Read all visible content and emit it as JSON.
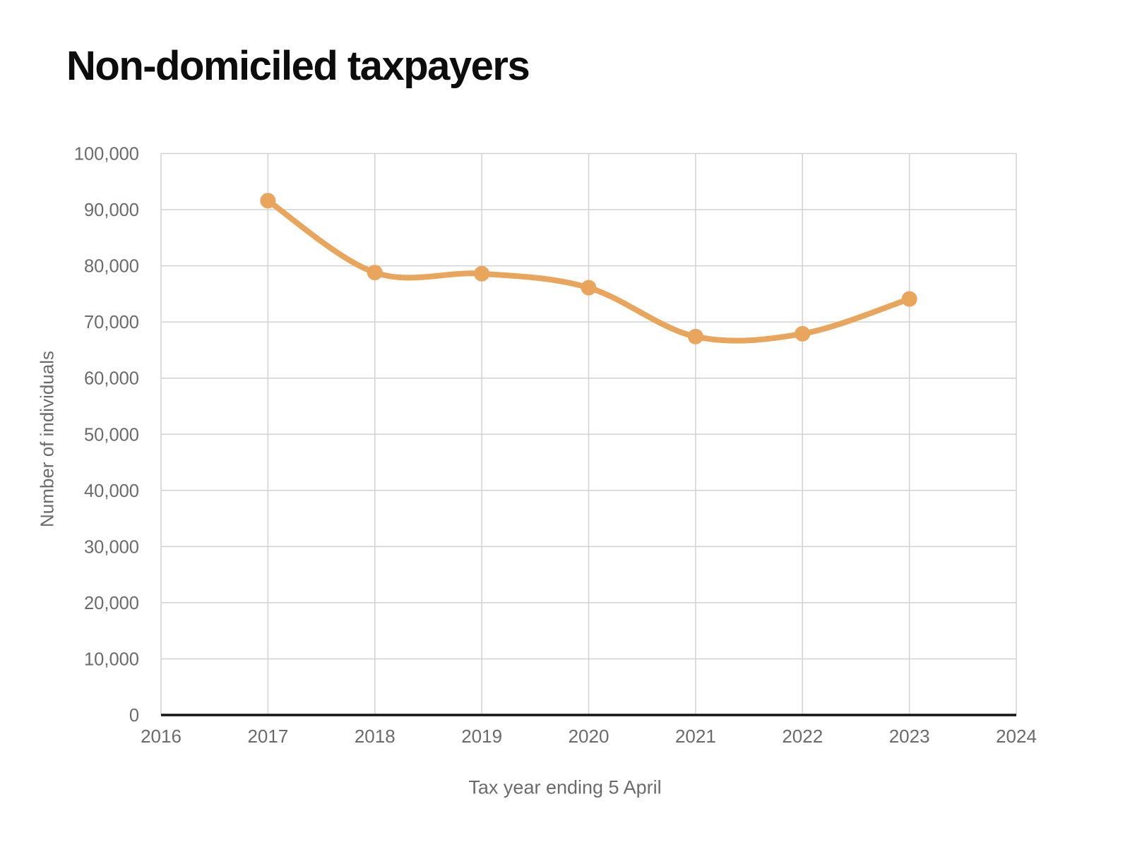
{
  "chart_data": {
    "type": "line",
    "title": "Non-domiciled taxpayers",
    "xlabel": "Tax year ending 5 April",
    "ylabel": "Number of individuals",
    "series": [
      {
        "name": "Non-domiciled taxpayers",
        "x": [
          2017,
          2018,
          2019,
          2020,
          2021,
          2022,
          2023
        ],
        "values": [
          91600,
          78800,
          78600,
          76100,
          67400,
          67900,
          74100
        ]
      }
    ],
    "x_ticks": [
      2016,
      2017,
      2018,
      2019,
      2020,
      2021,
      2022,
      2023,
      2024
    ],
    "x_tick_labels": [
      "2016",
      "2017",
      "2018",
      "2019",
      "2020",
      "2021",
      "2022",
      "2023",
      "2024"
    ],
    "y_ticks": [
      0,
      10000,
      20000,
      30000,
      40000,
      50000,
      60000,
      70000,
      80000,
      90000,
      100000
    ],
    "y_tick_labels": [
      "0",
      "10,000",
      "20,000",
      "30,000",
      "40,000",
      "50,000",
      "60,000",
      "70,000",
      "80,000",
      "90,000",
      "100,000"
    ],
    "xlim": [
      2016,
      2024
    ],
    "ylim": [
      0,
      100000
    ],
    "grid": true,
    "legend_position": "none",
    "line_color": "#E9A55C",
    "marker": "circle"
  },
  "colors": {
    "title_text": "#0d0d0d",
    "axis_text": "#6b6b6b",
    "gridline": "#d2d2d2",
    "axis_line": "#141414",
    "background": "#ffffff"
  }
}
